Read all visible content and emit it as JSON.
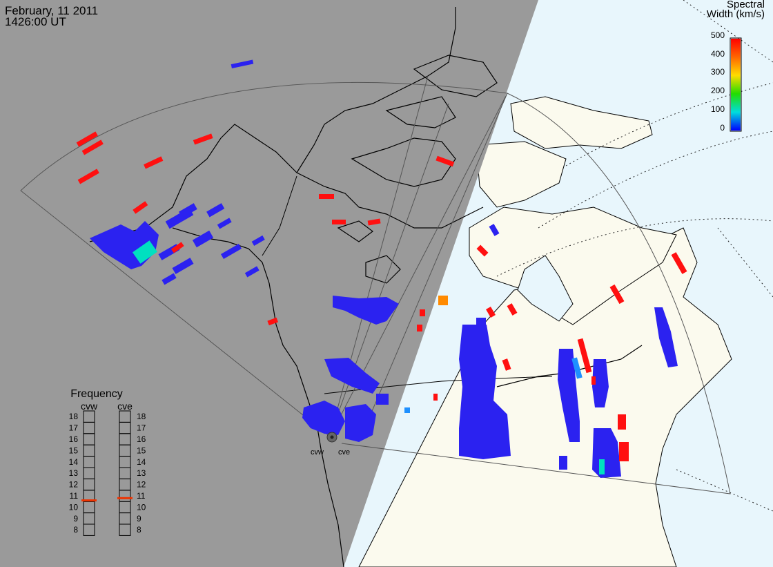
{
  "header": {
    "date": "February, 11 2011",
    "time": "1426:00 UT"
  },
  "colorbar": {
    "title_line1": "Spectral",
    "title_line2": "Width (km/s)",
    "ticks": [
      "500",
      "400",
      "300",
      "200",
      "100",
      "0"
    ],
    "colors": [
      "#ff0000",
      "#ff8800",
      "#ffee00",
      "#33dd00",
      "#00dddd",
      "#0000ff"
    ]
  },
  "frequency_panel": {
    "title": "Frequency",
    "radars": [
      {
        "label": "cvw",
        "current_mhz": 10.6
      },
      {
        "label": "cve",
        "current_mhz": 10.8
      }
    ],
    "scale": [
      "18",
      "17",
      "16",
      "15",
      "14",
      "13",
      "12",
      "11",
      "10",
      "9",
      "8"
    ]
  },
  "radar_site_labels": [
    "cvw",
    "cve"
  ],
  "colors": {
    "night": "#9a9a9a",
    "land_day": "#fbfaee",
    "water_day": "#e8f6fc",
    "scatter_low": "#2b22f0",
    "scatter_high": "#ff1010",
    "scatter_mid": "#00e0c0",
    "scatter_orange": "#ff8a00",
    "marker": "#ee3300"
  }
}
